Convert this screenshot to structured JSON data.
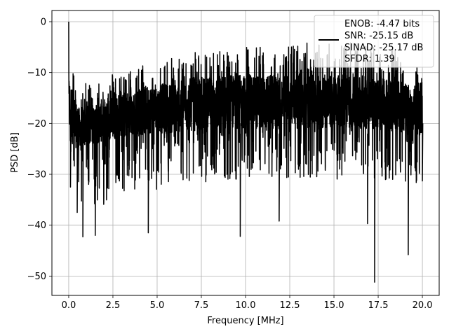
{
  "chart_data": {
    "type": "line",
    "title": "",
    "xlabel": "Frequency [MHz]",
    "ylabel": "PSD [dB]",
    "xlim": [
      -0.95,
      20.95
    ],
    "ylim": [
      -53.8,
      2.2
    ],
    "xticks": [
      0.0,
      2.5,
      5.0,
      7.5,
      10.0,
      12.5,
      15.0,
      17.5,
      20.0
    ],
    "xtick_labels": [
      "0.0",
      "2.5",
      "5.0",
      "7.5",
      "10.0",
      "12.5",
      "15.0",
      "17.5",
      "20.0"
    ],
    "yticks": [
      0,
      -10,
      -20,
      -30,
      -40,
      -50
    ],
    "ytick_labels": [
      "0",
      "−10",
      "−20",
      "−30",
      "−40",
      "−50"
    ],
    "grid": true,
    "legend_position": "top-right",
    "legend": [
      "ENOB: -4.47 bits",
      "SNR: -25.15 dB",
      "SINAD: -25.17 dB",
      "SFDR: 1.39"
    ],
    "series": [
      {
        "color": "#000000",
        "description_points": {
          "x_start": 0.0,
          "x_end": 20.0,
          "peak": [
            0.0,
            0.0
          ],
          "notable_dips": [
            [
              0.1,
              -32.5
            ],
            [
              0.48,
              -37.5
            ],
            [
              0.8,
              -42.3
            ],
            [
              1.5,
              -42.0
            ],
            [
              4.5,
              -41.5
            ],
            [
              9.7,
              -42.2
            ],
            [
              11.9,
              -39.2
            ],
            [
              16.9,
              -39.7
            ],
            [
              17.3,
              -51.2
            ],
            [
              19.2,
              -45.8
            ],
            [
              20.0,
              -31.3
            ]
          ]
        },
        "envelope": {
          "x": [
            0.0,
            0.3,
            0.6,
            1.0,
            1.5,
            2.0,
            2.5,
            3.0,
            3.5,
            4.0,
            4.5,
            5.0,
            5.5,
            6.0,
            6.5,
            7.0,
            7.5,
            8.0,
            8.5,
            9.0,
            9.5,
            10.0,
            10.5,
            11.0,
            11.5,
            12.0,
            12.5,
            13.0,
            13.5,
            14.0,
            14.5,
            15.0,
            15.5,
            16.0,
            16.5,
            17.0,
            17.5,
            18.0,
            18.5,
            19.0,
            19.5,
            20.0
          ],
          "upper": [
            0.0,
            -9.0,
            -13.5,
            -12.0,
            -11.5,
            -11.0,
            -10.0,
            -10.5,
            -9.5,
            -9.0,
            -7.5,
            -8.5,
            -7.5,
            -7.0,
            -6.5,
            -6.0,
            -5.5,
            -5.5,
            -5.5,
            -4.5,
            -5.0,
            -4.5,
            -5.0,
            -4.0,
            -5.0,
            -4.5,
            -4.0,
            -4.0,
            -4.0,
            -4.0,
            -4.0,
            -3.5,
            -4.0,
            -4.0,
            -4.5,
            -5.0,
            -4.5,
            -5.0,
            -5.5,
            -7.0,
            -8.0,
            -9.5
          ],
          "median_upper": [
            -10,
            -14.5,
            -17.0,
            -16.5,
            -16.0,
            -15.0,
            -14.5,
            -14.0,
            -13.5,
            -13.0,
            -12.5,
            -12.5,
            -12.0,
            -12.0,
            -11.5,
            -11.0,
            -11.0,
            -11.0,
            -10.5,
            -10.5,
            -10.5,
            -10.5,
            -10.5,
            -10.5,
            -10.5,
            -10.5,
            -10.5,
            -10.5,
            -10.5,
            -10.5,
            -10.5,
            -10.5,
            -10.5,
            -10.5,
            -10.5,
            -11.0,
            -11.0,
            -11.5,
            -11.5,
            -12.0,
            -12.5,
            -13.0
          ],
          "median_lower": [
            -22,
            -25.0,
            -24.5,
            -24.5,
            -24.0,
            -23.5,
            -23.0,
            -23.0,
            -22.5,
            -22.5,
            -22.0,
            -22.0,
            -22.0,
            -22.0,
            -21.5,
            -21.5,
            -21.5,
            -21.5,
            -21.5,
            -21.5,
            -21.0,
            -21.0,
            -21.0,
            -21.0,
            -21.0,
            -21.0,
            -21.0,
            -21.0,
            -21.0,
            -21.0,
            -21.0,
            -21.0,
            -21.0,
            -21.0,
            -21.0,
            -21.0,
            -21.5,
            -21.5,
            -21.5,
            -22.0,
            -22.0,
            -22.5
          ],
          "lower": [
            -25,
            -31.5,
            -35.0,
            -37.0,
            -37.5,
            -36.0,
            -35.0,
            -34.5,
            -34.0,
            -33.5,
            -33.0,
            -33.0,
            -32.5,
            -32.5,
            -32.0,
            -32.0,
            -31.5,
            -31.5,
            -31.5,
            -31.0,
            -31.0,
            -31.0,
            -31.0,
            -31.0,
            -31.0,
            -31.0,
            -31.0,
            -31.0,
            -31.0,
            -31.0,
            -31.0,
            -31.0,
            -31.0,
            -31.0,
            -31.0,
            -31.0,
            -31.5,
            -31.5,
            -31.5,
            -32.0,
            -32.5,
            -31.3
          ]
        }
      }
    ]
  }
}
